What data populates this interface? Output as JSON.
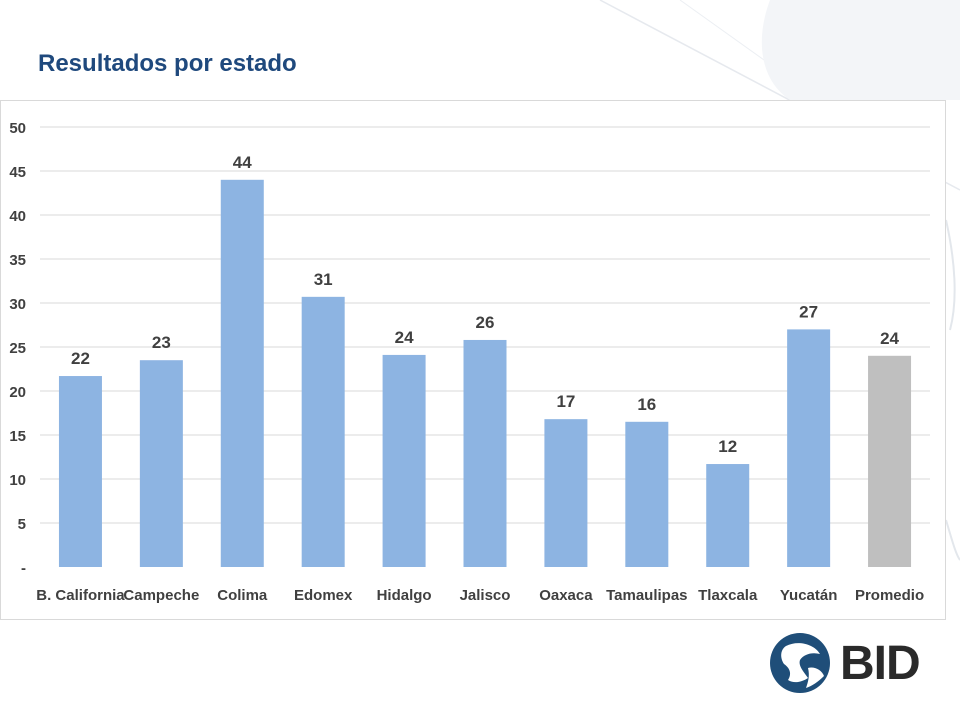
{
  "slide": {
    "title": "Resultados por estado",
    "logo_text": "BID"
  },
  "colors": {
    "title": "#1f497d",
    "bar": "#8db4e2",
    "bar_average": "#bfbfbf",
    "grid": "#d9d9d9",
    "label": "#404040",
    "logo": "#1f4e79"
  },
  "chart_data": {
    "type": "bar",
    "title": "",
    "xlabel": "",
    "ylabel": "",
    "ylim": [
      0,
      50
    ],
    "yticks": [
      "-",
      "5",
      "10",
      "15",
      "20",
      "25",
      "30",
      "35",
      "40",
      "45",
      "50"
    ],
    "grid": true,
    "legend": "none",
    "categories": [
      "B. California",
      "Campeche",
      "Colima",
      "Edomex",
      "Hidalgo",
      "Jalisco",
      "Oaxaca",
      "Tamaulipas",
      "Tlaxcala",
      "Yucatán",
      "Promedio"
    ],
    "values": [
      21.7,
      23.5,
      44,
      30.7,
      24.1,
      25.8,
      16.8,
      16.5,
      11.7,
      27,
      24
    ],
    "data_labels": [
      "22",
      "23",
      "44",
      "31",
      "24",
      "26",
      "17",
      "16",
      "12",
      "27",
      "24"
    ],
    "highlight_category": "Promedio"
  }
}
